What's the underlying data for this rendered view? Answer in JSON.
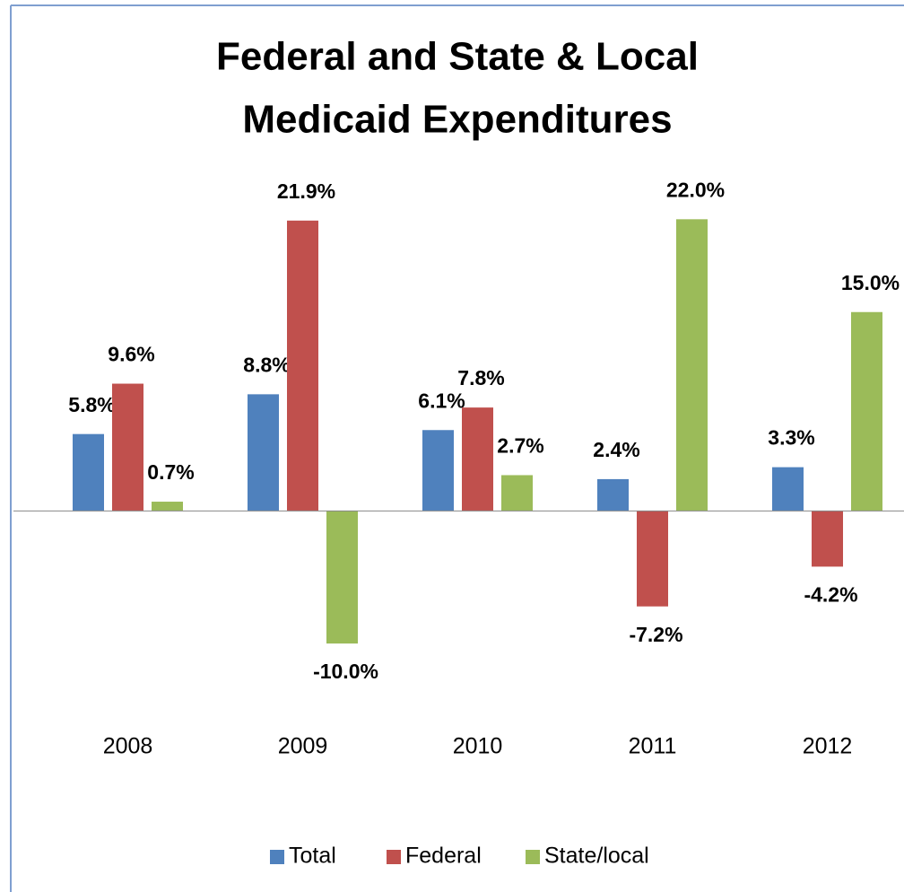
{
  "chart_data": {
    "type": "bar",
    "title": [
      "Federal and State & Local",
      "Medicaid Expenditures"
    ],
    "categories": [
      "2008",
      "2009",
      "2010",
      "2011",
      "2012"
    ],
    "series": [
      {
        "name": "Total",
        "color": "#4f81bd",
        "values": [
          5.8,
          8.8,
          6.1,
          2.4,
          3.3
        ],
        "value_labels": [
          "5.8%",
          "8.8%",
          "6.1%",
          "2.4%",
          "3.3%"
        ]
      },
      {
        "name": "Federal",
        "color": "#c0504d",
        "values": [
          9.6,
          21.9,
          7.8,
          -7.2,
          -4.2
        ],
        "value_labels": [
          "9.6%",
          "21.9%",
          "7.8%",
          "-7.2%",
          "-4.2%"
        ]
      },
      {
        "name": "State/local",
        "color": "#9bbb59",
        "values": [
          0.7,
          -10.0,
          2.7,
          22.0,
          15.0
        ],
        "value_labels": [
          "0.7%",
          "-10.0%",
          "2.7%",
          "22.0%",
          "15.0%"
        ]
      }
    ],
    "ylim": [
      -15,
      25
    ],
    "legend": "bottom"
  }
}
